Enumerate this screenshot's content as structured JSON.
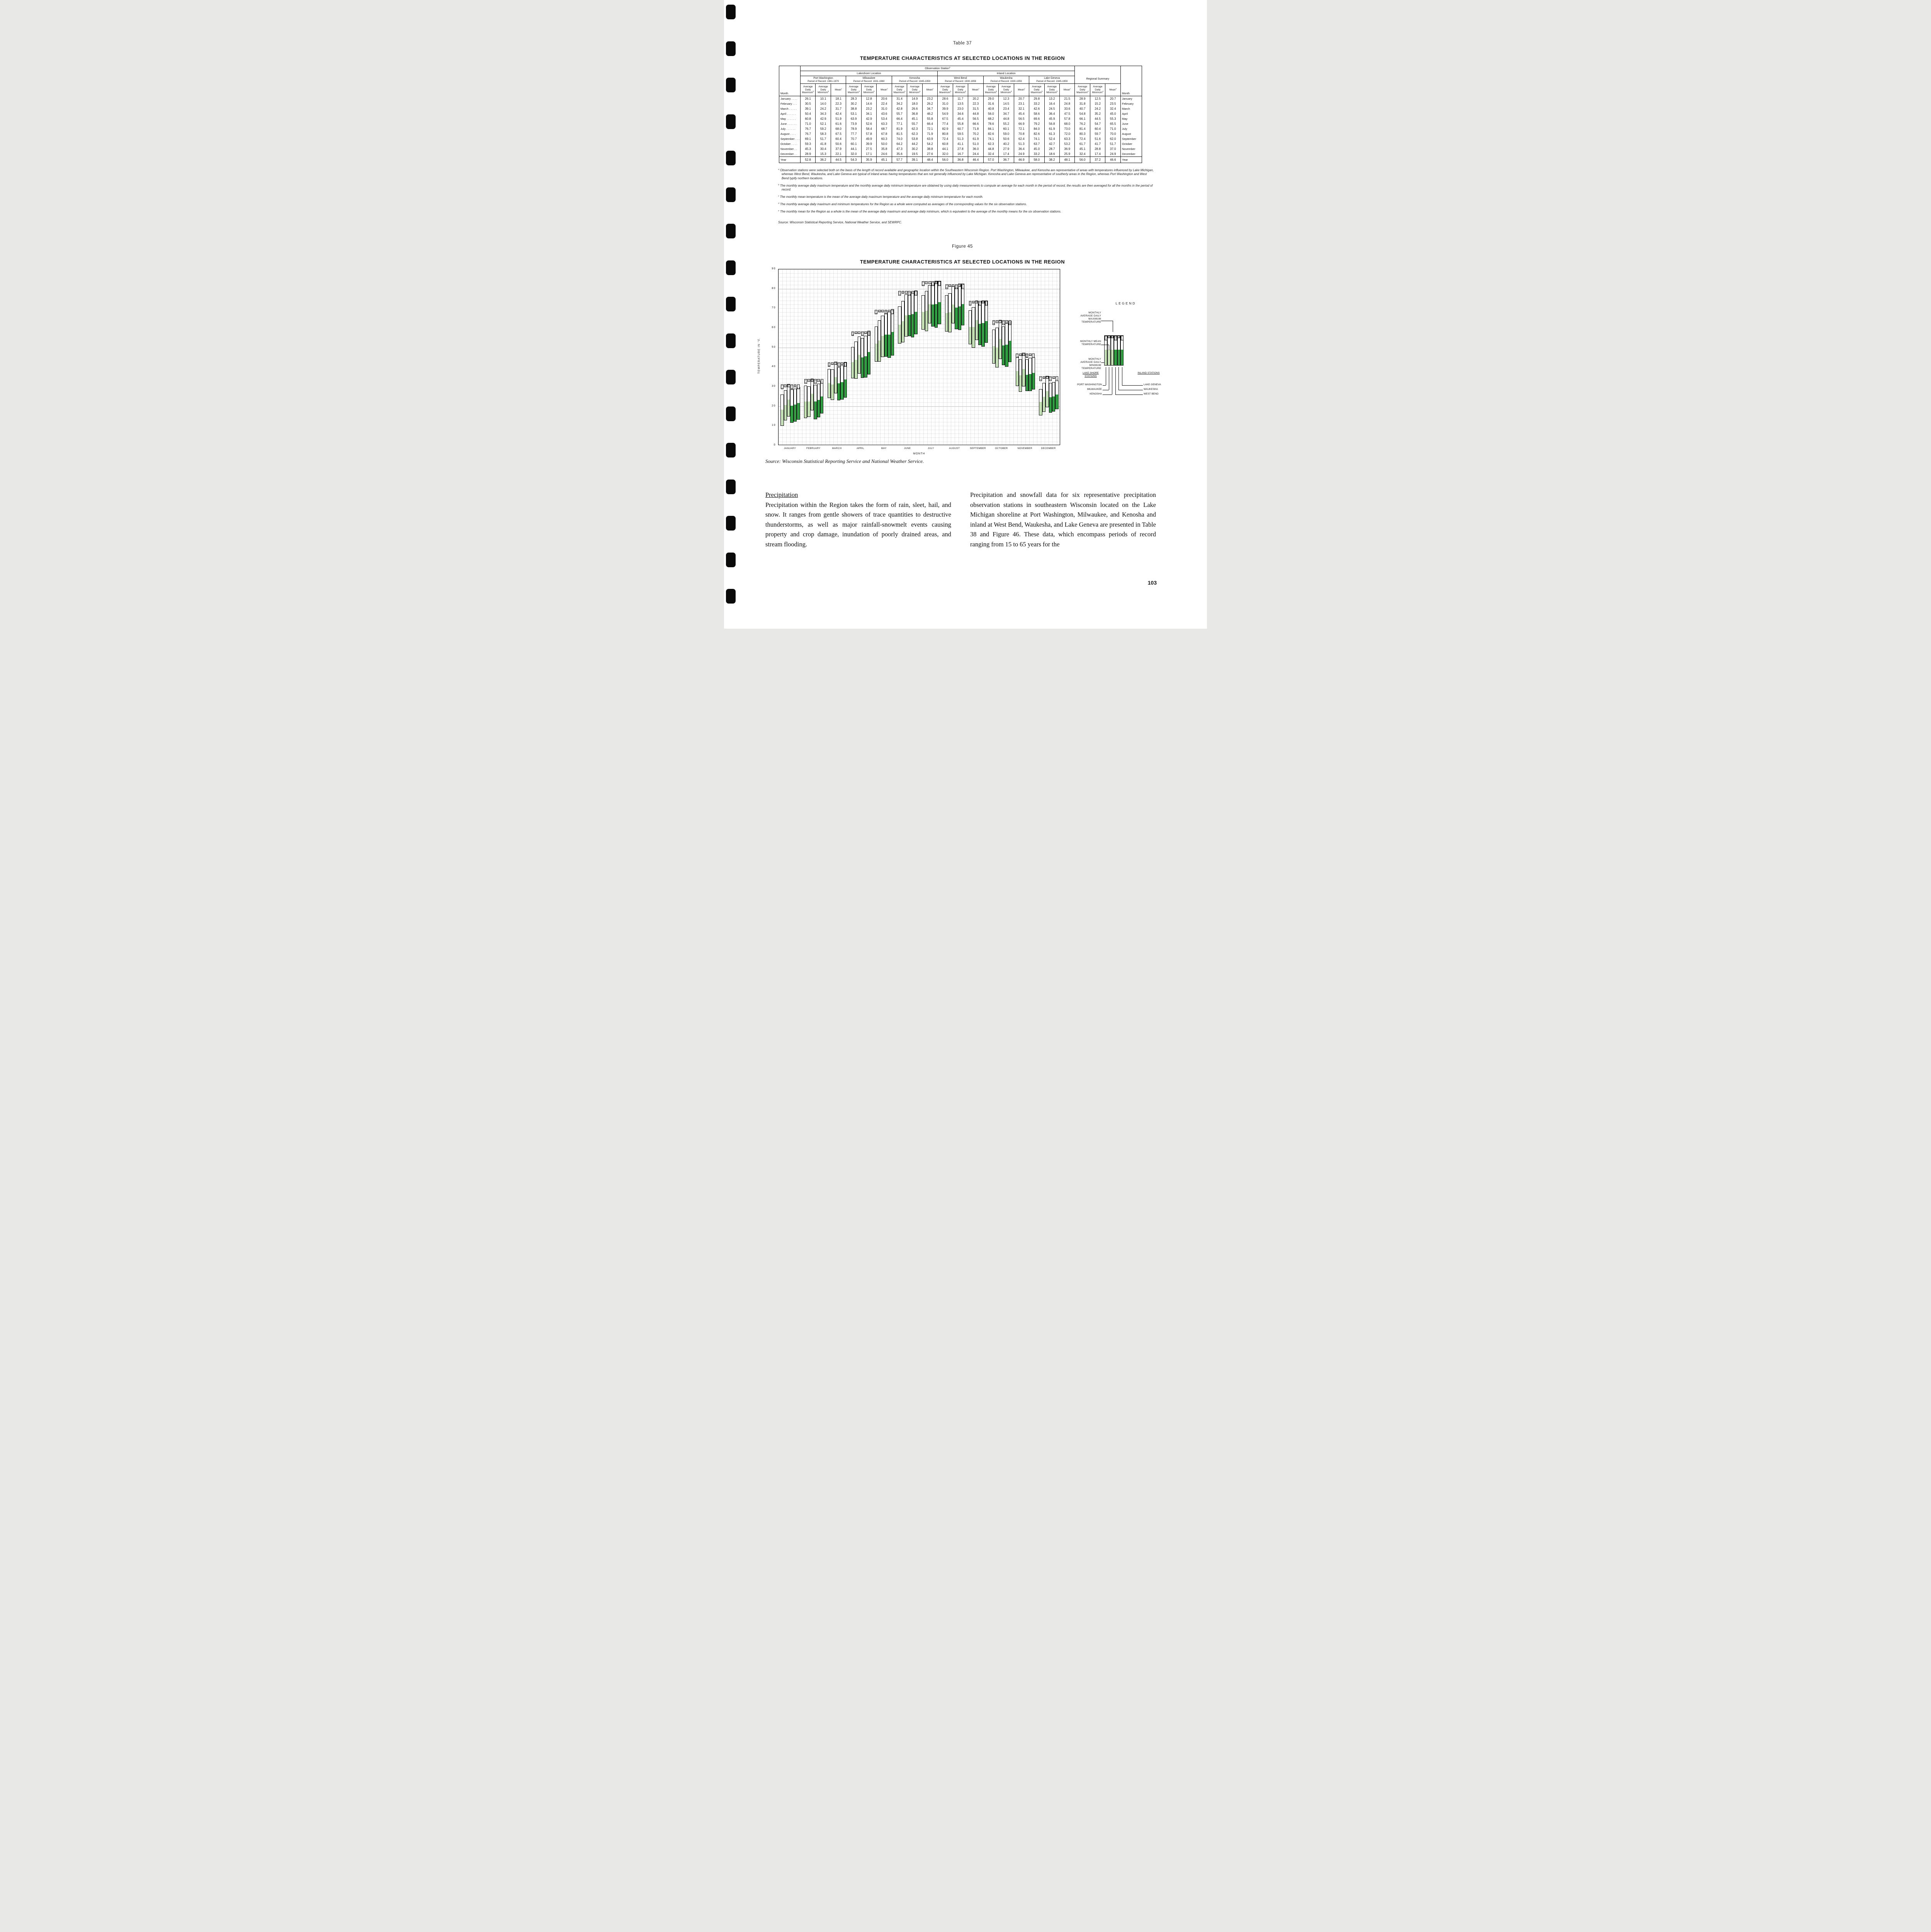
{
  "page": {
    "number": "103"
  },
  "table": {
    "caption": "Table 37",
    "title": "TEMPERATURE CHARACTERISTICS AT SELECTED LOCATIONS IN THE REGION",
    "observation_header": {
      "text": "Observation Station",
      "sup": "a"
    },
    "month_col_header": "Month",
    "groups": [
      {
        "label": "Lakeshore Location"
      },
      {
        "label": "Inland Location"
      }
    ],
    "stations": [
      {
        "name": "Port Washington",
        "period": "Period of Record: 1961-1970",
        "subcols": [
          {
            "text": "Average Daily Maximum",
            "sup": "b"
          },
          {
            "text": "Average Daily Minimum",
            "sup": "b"
          },
          {
            "text": "Mean",
            "sup": "c"
          }
        ]
      },
      {
        "name": "Milwaukee",
        "period": "Period of Record: 1931-1960",
        "subcols": [
          {
            "text": "Average Daily Maximum",
            "sup": "b"
          },
          {
            "text": "Average Daily Minimum",
            "sup": "b"
          },
          {
            "text": "Mean",
            "sup": "c"
          }
        ]
      },
      {
        "name": "Kenosha",
        "period": "Period of Record: 1945-1959",
        "subcols": [
          {
            "text": "Average Daily Maximum",
            "sup": "b"
          },
          {
            "text": "Average Daily Minimum",
            "sup": "b"
          },
          {
            "text": "Mean",
            "sup": "c"
          }
        ]
      },
      {
        "name": "West Bend",
        "period": "Period of Record: 1930-1959",
        "subcols": [
          {
            "text": "Average Daily Maximum",
            "sup": "b"
          },
          {
            "text": "Average Daily Minimum",
            "sup": "b"
          },
          {
            "text": "Mean",
            "sup": "c"
          }
        ]
      },
      {
        "name": "Waukesha",
        "period": "Period of Record: 1930-1959",
        "subcols": [
          {
            "text": "Average Daily Maximum",
            "sup": "b"
          },
          {
            "text": "Average Daily Minimum",
            "sup": "b"
          },
          {
            "text": "Mean",
            "sup": "c"
          }
        ]
      },
      {
        "name": "Lake Geneva",
        "period": "Period of Record: 1945-1959",
        "subcols": [
          {
            "text": "Average Daily Maximum",
            "sup": "b"
          },
          {
            "text": "Average Daily Minimum",
            "sup": "b"
          },
          {
            "text": "Mean",
            "sup": "c"
          }
        ]
      },
      {
        "name": "Regional Summary",
        "period": "",
        "subcols": [
          {
            "text": "Average Daily Maximum",
            "sup": "d"
          },
          {
            "text": "Average Daily Minimum",
            "sup": "d"
          },
          {
            "text": "Mean",
            "sup": "e"
          }
        ]
      }
    ],
    "rows": [
      {
        "label": "January . . . .",
        "month": "January",
        "values": [
          "26.1",
          "10.1",
          "18.1",
          "28.3",
          "12.8",
          "20.6",
          "31.4",
          "14.9",
          "23.2",
          "28.6",
          "11.7",
          "20.2",
          "29.0",
          "12.3",
          "20.7",
          "29.8",
          "13.2",
          "21.5",
          "28.9",
          "12.5",
          "20.7"
        ]
      },
      {
        "label": "February . . .",
        "month": "February",
        "values": [
          "30.5",
          "14.0",
          "22.3",
          "30.2",
          "14.6",
          "22.4",
          "34.2",
          "18.0",
          "26.2",
          "31.0",
          "13.5",
          "22.3",
          "31.6",
          "14.5",
          "23.1",
          "33.2",
          "16.4",
          "24.8",
          "31.8",
          "15.2",
          "23.5"
        ]
      },
      {
        "label": "March . . . . .",
        "month": "March",
        "values": [
          "39.1",
          "24.2",
          "31.7",
          "38.8",
          "23.2",
          "31.0",
          "42.8",
          "26.6",
          "34.7",
          "39.9",
          "23.0",
          "31.5",
          "40.8",
          "23.4",
          "32.1",
          "42.6",
          "24.5",
          "33.6",
          "40.7",
          "24.2",
          "32.4"
        ]
      },
      {
        "label": "April . . . . . .",
        "month": "April",
        "values": [
          "50.4",
          "34.3",
          "42.4",
          "53.1",
          "34.1",
          "43.6",
          "55.7",
          "36.8",
          "46.2",
          "54.9",
          "34.6",
          "44.8",
          "56.0",
          "34.7",
          "45.4",
          "58.6",
          "36.4",
          "47.5",
          "54.8",
          "35.2",
          "45.0"
        ]
      },
      {
        "label": "May . . . . . .",
        "month": "May",
        "values": [
          "60.8",
          "42.9",
          "51.9",
          "63.9",
          "42.9",
          "53.4",
          "66.4",
          "45.1",
          "55.8",
          "67.5",
          "45.4",
          "56.5",
          "68.2",
          "44.8",
          "56.5",
          "69.6",
          "45.9",
          "57.8",
          "66.1",
          "44.5",
          "55.3"
        ]
      },
      {
        "label": "June . . . . . .",
        "month": "June",
        "values": [
          "71.0",
          "52.1",
          "61.6",
          "73.9",
          "52.6",
          "63.3",
          "77.1",
          "55.7",
          "66.4",
          "77.4",
          "55.8",
          "66.6",
          "78.6",
          "55.2",
          "66.9",
          "79.2",
          "56.8",
          "68.0",
          "76.2",
          "54.7",
          "65.5"
        ]
      },
      {
        "label": "July . . . . . .",
        "month": "July",
        "values": [
          "76.7",
          "59.2",
          "68.0",
          "78.9",
          "58.4",
          "68.7",
          "81.9",
          "62.3",
          "72.1",
          "82.9",
          "60.7",
          "71.8",
          "84.1",
          "60.1",
          "72.1",
          "84.0",
          "61.9",
          "73.0",
          "81.4",
          "60.4",
          "71.0"
        ]
      },
      {
        "label": "August . . . .",
        "month": "August",
        "values": [
          "76.7",
          "58.3",
          "67.5",
          "77.7",
          "57.8",
          "67.8",
          "81.5",
          "62.3",
          "71.9",
          "80.8",
          "59.5",
          "70.2",
          "82.6",
          "59.0",
          "70.8",
          "82.6",
          "61.3",
          "72.0",
          "80.3",
          "59.7",
          "70.0"
        ]
      },
      {
        "label": "September . . .",
        "month": "September",
        "values": [
          "69.1",
          "51.7",
          "60.4",
          "70.7",
          "49.9",
          "60.3",
          "74.0",
          "53.8",
          "63.9",
          "72.4",
          "51.3",
          "61.9",
          "74.1",
          "50.6",
          "62.4",
          "74.1",
          "52.4",
          "63.3",
          "72.4",
          "51.6",
          "62.0"
        ]
      },
      {
        "label": "October . . . .",
        "month": "October",
        "values": [
          "59.3",
          "41.8",
          "50.6",
          "60.1",
          "39.9",
          "50.0",
          "64.2",
          "44.2",
          "54.2",
          "60.8",
          "41.1",
          "51.0",
          "62.3",
          "40.2",
          "51.3",
          "63.7",
          "42.7",
          "53.2",
          "61.7",
          "41.7",
          "51.7"
        ]
      },
      {
        "label": "November . .",
        "month": "November",
        "values": [
          "45.3",
          "30.4",
          "37.9",
          "44.1",
          "27.5",
          "35.8",
          "47.3",
          "30.2",
          "38.8",
          "44.1",
          "27.8",
          "36.0",
          "44.8",
          "27.9",
          "36.4",
          "45.0",
          "28.7",
          "36.9",
          "45.1",
          "28.8",
          "37.0"
        ]
      },
      {
        "label": "December . .",
        "month": "December",
        "values": [
          "28.9",
          "15.3",
          "22.1",
          "32.0",
          "17.1",
          "24.6",
          "35.6",
          "19.5",
          "27.6",
          "32.0",
          "16.7",
          "24.4",
          "32.4",
          "17.4",
          "24.9",
          "33.2",
          "18.6",
          "25.9",
          "32.4",
          "17.4",
          "24.9"
        ]
      }
    ],
    "year_row": {
      "label": "Year",
      "month": "Year",
      "values": [
        "52.8",
        "36.2",
        "44.5",
        "54.3",
        "35.9",
        "45.1",
        "57.7",
        "39.1",
        "48.4",
        "56.0",
        "36.8",
        "46.4",
        "57.0",
        "36.7",
        "46.9",
        "58.0",
        "38.2",
        "48.1",
        "56.0",
        "37.2",
        "46.6"
      ]
    },
    "footnotes": [
      {
        "sup": "a",
        "text": "Observation stations were selected both on the basis of the length of record available and geographic location within the Southeastern Wisconsin Region. Port Washington, Milwaukee, and Kenosha are representative of areas with temperatures influenced by Lake Michigan, whereas West Bend, Waukesha, and Lake Geneva are typical of inland areas having temperatures that are not generally influenced by Lake Michigan. Kenosha and Lake Geneva are representative of southerly areas in the Region, whereas Port Washington and West Bend typify northern locations."
      },
      {
        "sup": "b",
        "text": "The monthly average daily maximum temperature and the monthly average daily minimum temperature are obtained by using daily measurements to compute an average for each month in the period of record, the results are then averaged for all the months in the period of record."
      },
      {
        "sup": "c",
        "text": "The monthly mean temperature is the mean of the average daily maximum temperature and the average daily minimum temperature for each month."
      },
      {
        "sup": "d",
        "text": "The monthly average daily maximum and minimum temperatures for the Region as a whole were computed as averages of the corresponding values for the six observation stations."
      },
      {
        "sup": "e",
        "text": "The monthly mean for the Region as a whole is the mean of the average daily maximum and average daily minimum, which is equivalent to the average of the monthly means for the six observation stations."
      }
    ],
    "source": "Source:  Wisconsin Statistical Reporting Service, National Weather Service, and SEWRPC."
  },
  "figure": {
    "caption": "Figure 45",
    "title": "TEMPERATURE CHARACTERISTICS AT SELECTED LOCATIONS IN THE REGION",
    "source": "Source:  Wisconsin Statistical Reporting Service and National Weather Service.",
    "legend": {
      "title": "LEGEND",
      "items": [
        "MONTHLY AVERAGE DAILY MAXIMUM TEMPERATURE",
        "MONTHLY MEAN TEMPERATURE",
        "MONTHLY AVERAGE DAILY MINIMUM TEMPERATURE"
      ],
      "lakeshore": {
        "title": "LAKE SHORE STATIONS",
        "stations": [
          "PORT WASHINGTON",
          "MILWAUKEE",
          "KENOSHA"
        ]
      },
      "inland": {
        "title": "INLAND STATIONS",
        "stations": [
          "LAKE GENEVA",
          "WAUKESHA",
          "WEST BEND"
        ]
      }
    }
  },
  "chart_data": {
    "type": "bar",
    "title": "TEMPERATURE CHARACTERISTICS AT SELECTED LOCATIONS IN THE REGION",
    "xlabel": "MONTH",
    "ylabel": "TEMPERATURE IN °F.",
    "ylim": [
      0,
      90
    ],
    "yticks": [
      0,
      10,
      20,
      30,
      40,
      50,
      60,
      70,
      80,
      90
    ],
    "grid": true,
    "legend_position": "right",
    "categories": [
      "JANUARY",
      "FEBRUARY",
      "MARCH",
      "APRIL",
      "MAY",
      "JUNE",
      "JULY",
      "AUGUST",
      "SEPTEMBER",
      "OCTOBER",
      "NOVEMBER",
      "DECEMBER"
    ],
    "bar_encoding": {
      "bar_top": "monthly average daily maximum",
      "fill_top": "monthly mean",
      "bar_bottom": "monthly average daily minimum"
    },
    "colors": {
      "lakeshore": "#c3e0b4",
      "inland": "#2e9e41"
    },
    "stations": [
      {
        "code": "PW",
        "label_lines": [
          "P",
          "W"
        ],
        "name": "PORT WASHINGTON",
        "group": "lakeshore"
      },
      {
        "code": "M",
        "label_lines": [
          "M"
        ],
        "name": "MILWAUKEE",
        "group": "lakeshore"
      },
      {
        "code": "K",
        "label_lines": [
          "K"
        ],
        "name": "KENOSHA",
        "group": "lakeshore"
      },
      {
        "code": "WB",
        "label_lines": [
          "W",
          "B"
        ],
        "name": "WEST BEND",
        "group": "inland"
      },
      {
        "code": "W",
        "label_lines": [
          "W"
        ],
        "name": "WAUKESHA",
        "group": "inland"
      },
      {
        "code": "LG",
        "label_lines": [
          "L",
          "G"
        ],
        "name": "LAKE GENEVA",
        "group": "inland"
      }
    ],
    "series": [
      {
        "station": "PW",
        "max": [
          26.1,
          30.5,
          39.1,
          50.4,
          60.8,
          71.0,
          76.7,
          76.7,
          69.1,
          59.3,
          45.3,
          28.9
        ],
        "mean": [
          18.1,
          22.3,
          31.7,
          42.4,
          51.9,
          61.6,
          68.0,
          67.5,
          60.4,
          50.6,
          37.9,
          22.1
        ],
        "min": [
          10.1,
          14.0,
          24.2,
          34.3,
          42.9,
          52.1,
          59.2,
          58.3,
          51.7,
          41.8,
          30.4,
          15.3
        ]
      },
      {
        "station": "M",
        "max": [
          28.3,
          30.2,
          38.8,
          53.1,
          63.9,
          73.9,
          78.9,
          77.7,
          70.7,
          60.1,
          44.1,
          32.0
        ],
        "mean": [
          20.6,
          22.4,
          31.0,
          43.6,
          53.4,
          63.3,
          68.7,
          67.8,
          60.3,
          50.0,
          35.8,
          24.6
        ],
        "min": [
          12.8,
          14.6,
          23.2,
          34.1,
          42.9,
          52.6,
          58.4,
          57.8,
          49.9,
          39.9,
          27.5,
          17.1
        ]
      },
      {
        "station": "K",
        "max": [
          31.4,
          34.2,
          42.8,
          55.7,
          66.4,
          77.1,
          81.9,
          81.5,
          74.0,
          64.2,
          47.3,
          35.6
        ],
        "mean": [
          23.2,
          26.2,
          34.7,
          46.2,
          55.8,
          66.4,
          72.1,
          71.9,
          63.9,
          54.2,
          38.8,
          27.6
        ],
        "min": [
          14.9,
          18.0,
          26.6,
          36.8,
          45.1,
          55.7,
          62.3,
          62.3,
          53.8,
          44.2,
          30.2,
          19.5
        ]
      },
      {
        "station": "WB",
        "max": [
          28.6,
          31.0,
          39.9,
          54.9,
          67.5,
          77.4,
          82.9,
          80.8,
          72.4,
          60.8,
          44.1,
          32.0
        ],
        "mean": [
          20.2,
          22.3,
          31.5,
          44.8,
          56.5,
          66.6,
          71.8,
          70.2,
          61.9,
          51.0,
          36.0,
          24.4
        ],
        "min": [
          11.7,
          13.5,
          23.0,
          34.6,
          45.4,
          55.8,
          60.7,
          59.5,
          51.3,
          41.1,
          27.8,
          16.7
        ]
      },
      {
        "station": "W",
        "max": [
          29.0,
          31.6,
          40.8,
          56.0,
          68.2,
          78.6,
          84.1,
          82.6,
          74.1,
          62.3,
          44.8,
          32.4
        ],
        "mean": [
          20.7,
          23.1,
          32.1,
          45.4,
          56.5,
          66.9,
          72.1,
          70.8,
          62.4,
          51.3,
          36.4,
          24.9
        ],
        "min": [
          12.3,
          14.5,
          23.4,
          34.7,
          44.8,
          55.2,
          60.1,
          59.0,
          50.6,
          40.2,
          27.9,
          17.4
        ]
      },
      {
        "station": "LG",
        "max": [
          29.8,
          33.2,
          42.6,
          58.6,
          69.6,
          79.2,
          84.0,
          82.6,
          74.1,
          63.7,
          45.0,
          33.2
        ],
        "mean": [
          21.5,
          24.8,
          33.6,
          47.5,
          57.8,
          68.0,
          73.0,
          72.0,
          63.3,
          53.2,
          36.9,
          25.9
        ],
        "min": [
          13.2,
          16.4,
          24.5,
          36.4,
          45.9,
          56.8,
          61.9,
          61.3,
          52.4,
          42.7,
          28.7,
          18.6
        ]
      }
    ]
  },
  "body": {
    "left_heading": "Precipitation",
    "left_paragraph": "Precipitation within the Region takes the form of rain, sleet, hail, and snow. It ranges from gentle showers of trace quantities to destructive thunderstorms, as well as major rainfall-snowmelt events causing property and crop damage, inundation of poorly drained areas, and stream flooding.",
    "right_paragraph": "Precipitation and snowfall data for six representative precipitation observation stations in southeastern Wisconsin located on the Lake Michigan shoreline at Port Washington, Milwaukee, and Kenosha and inland at West Bend, Waukesha, and Lake Geneva are presented in Table 38 and Figure 46. These data, which encompass periods of record ranging from 15 to 65 years for the"
  }
}
